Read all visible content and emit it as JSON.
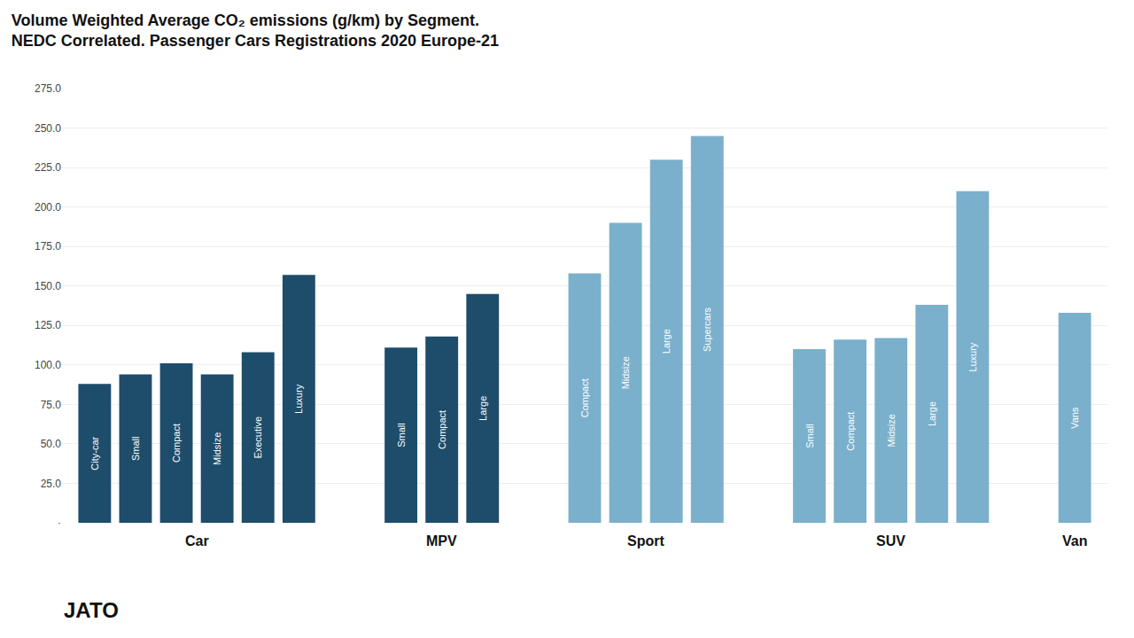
{
  "chart_data": {
    "type": "bar",
    "title": "Volume Weighted Average CO₂ emissions (g/km) by Segment.",
    "subtitle": "NEDC Correlated. Passenger Cars Registrations 2020 Europe-21",
    "categories": [
      "City-car",
      "Small",
      "Compact",
      "Midsize",
      "Executive",
      "Luxury",
      "Small",
      "Compact",
      "Large",
      "Compact",
      "Midsize",
      "Large",
      "Supercars",
      "Small",
      "Compact",
      "Midsize",
      "Large",
      "Luxury",
      "Vans"
    ],
    "groups": [
      "Car",
      "Car",
      "Car",
      "Car",
      "Car",
      "Car",
      "MPV",
      "MPV",
      "MPV",
      "Sport",
      "Sport",
      "Sport",
      "Sport",
      "SUV",
      "SUV",
      "SUV",
      "SUV",
      "SUV",
      "Van"
    ],
    "values": [
      88,
      94,
      101,
      94,
      108,
      157,
      111,
      118,
      145,
      158,
      190,
      230,
      245,
      110,
      116,
      117,
      138,
      210,
      133
    ],
    "colors": [
      "#1e4d6b",
      "#1e4d6b",
      "#1e4d6b",
      "#1e4d6b",
      "#1e4d6b",
      "#1e4d6b",
      "#1e4d6b",
      "#1e4d6b",
      "#1e4d6b",
      "#7ab0cc",
      "#7ab0cc",
      "#7ab0cc",
      "#7ab0cc",
      "#7ab0cc",
      "#7ab0cc",
      "#7ab0cc",
      "#7ab0cc",
      "#7ab0cc",
      "#7ab0cc"
    ],
    "ylim": [
      0,
      275
    ],
    "yticks": [
      {
        "value": 0,
        "label": "·"
      },
      {
        "value": 25,
        "label": "25.0"
      },
      {
        "value": 50,
        "label": "50.0"
      },
      {
        "value": 75,
        "label": "75.0"
      },
      {
        "value": 100,
        "label": "100.0"
      },
      {
        "value": 125,
        "label": "125.0"
      },
      {
        "value": 150,
        "label": "150.0"
      },
      {
        "value": 175,
        "label": "175.0"
      },
      {
        "value": 200,
        "label": "200.0"
      },
      {
        "value": 225,
        "label": "225.0"
      },
      {
        "value": 250,
        "label": "250.0"
      },
      {
        "value": 275,
        "label": "275.0"
      }
    ],
    "grid": true,
    "tick_labels": "y",
    "annotations": [
      {
        "text": "JATO"
      }
    ]
  }
}
